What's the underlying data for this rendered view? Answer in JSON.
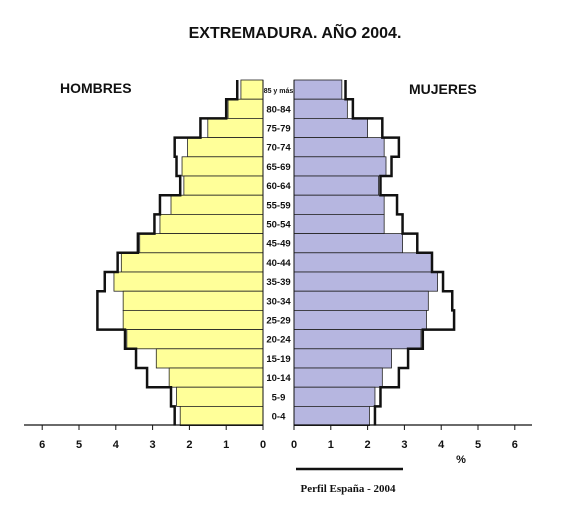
{
  "chart_data": {
    "type": "bar",
    "title": "EXTREMADURA. AÑO 2004.",
    "left_label": "HOMBRES",
    "right_label": "MUJERES",
    "unit_label": "%",
    "reference_label": "Perfil España - 2004",
    "xlim": [
      0,
      6
    ],
    "x_ticks": [
      "6",
      "5",
      "4",
      "3",
      "2",
      "1",
      "0"
    ],
    "x_ticks_right": [
      "0",
      "1",
      "2",
      "3",
      "4",
      "5",
      "6"
    ],
    "categories": [
      "85 y más",
      "80-84",
      "75-79",
      "70-74",
      "65-69",
      "60-64",
      "55-59",
      "50-54",
      "45-49",
      "40-44",
      "35-39",
      "30-34",
      "25-29",
      "20-24",
      "15-19",
      "10-14",
      "5-9",
      "0-4"
    ],
    "series": [
      {
        "name": "HOMBRES",
        "values": [
          0.6,
          0.95,
          1.5,
          2.05,
          2.2,
          2.15,
          2.5,
          2.8,
          3.35,
          3.85,
          4.05,
          3.8,
          3.8,
          3.7,
          2.9,
          2.55,
          2.35,
          2.25
        ]
      },
      {
        "name": "MUJERES",
        "values": [
          1.3,
          1.45,
          2.0,
          2.45,
          2.5,
          2.3,
          2.45,
          2.45,
          2.95,
          3.75,
          3.9,
          3.65,
          3.6,
          3.45,
          2.65,
          2.4,
          2.2,
          2.05
        ]
      },
      {
        "name": "Perfil España - 2004 (Hombres)",
        "values": [
          0.7,
          1.0,
          1.7,
          2.4,
          2.35,
          2.25,
          2.8,
          2.95,
          3.4,
          3.95,
          4.3,
          4.5,
          4.5,
          3.75,
          3.45,
          3.15,
          2.5,
          2.4
        ]
      },
      {
        "name": "Perfil España - 2004 (Mujeres)",
        "values": [
          1.4,
          1.6,
          2.4,
          2.85,
          2.65,
          2.35,
          2.8,
          2.95,
          3.35,
          3.75,
          4.05,
          4.3,
          4.35,
          3.5,
          3.1,
          2.85,
          2.35,
          2.2
        ]
      }
    ],
    "colors": {
      "male_fill": "#ffff99",
      "female_fill": "#b6b6e0",
      "outline": "#111111"
    },
    "grid": false,
    "legend": "bottom"
  }
}
